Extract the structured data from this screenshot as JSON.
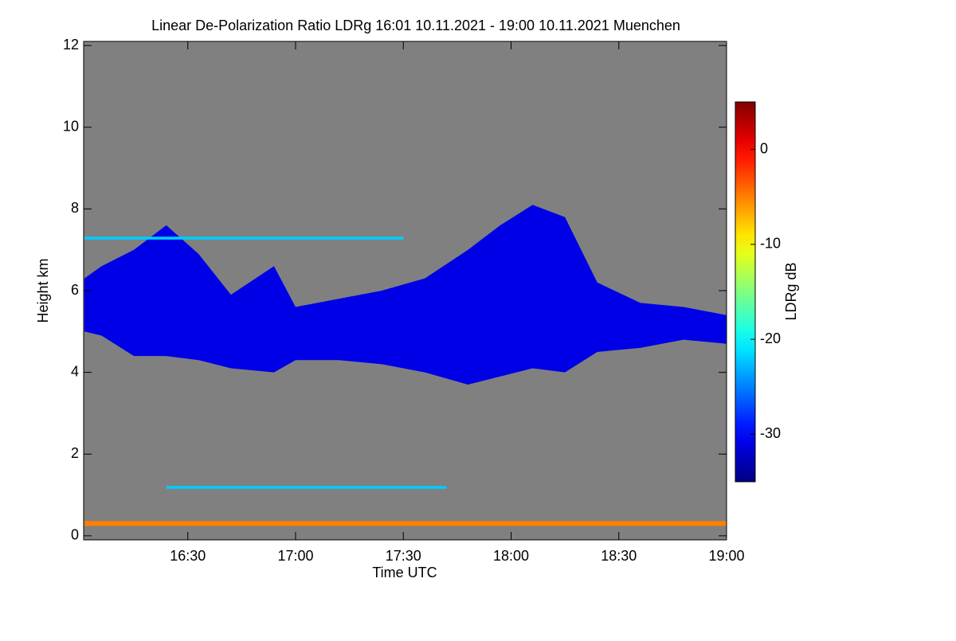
{
  "chart_data": {
    "type": "curtain",
    "title": "Linear De-Polarization Ratio LDRg   16:01 10.11.2021 - 19:00 10.11.2021 Muenchen",
    "xlabel": "Time UTC",
    "ylabel": "Height km",
    "colorbar_label": "LDRg dB",
    "colormap": "jet",
    "background": "#808080",
    "xlim": [
      16.0167,
      19.0
    ],
    "xticks": [
      {
        "value": 16.5,
        "label": "16:30"
      },
      {
        "value": 17.0,
        "label": "17:00"
      },
      {
        "value": 17.5,
        "label": "17:30"
      },
      {
        "value": 18.0,
        "label": "18:00"
      },
      {
        "value": 18.5,
        "label": "18:30"
      },
      {
        "value": 19.0,
        "label": "19:00"
      }
    ],
    "ylim": [
      -0.1,
      12.1
    ],
    "yticks": [
      0,
      2,
      4,
      6,
      8,
      10,
      12
    ],
    "clim": [
      -35,
      5
    ],
    "cticks": [
      0,
      -10,
      -20,
      -30
    ],
    "layers": [
      {
        "ldr": -31,
        "x": [
          16.02,
          16.1,
          16.25,
          16.4,
          16.55,
          16.7,
          16.9,
          17.0,
          17.2,
          17.4,
          17.6,
          17.8,
          17.95,
          18.1,
          18.25,
          18.4,
          18.6,
          18.8,
          19.0
        ],
        "base": [
          5.0,
          4.9,
          4.4,
          4.4,
          4.3,
          4.1,
          4.0,
          4.3,
          4.3,
          4.2,
          4.0,
          3.7,
          3.9,
          4.1,
          4.0,
          4.5,
          4.6,
          4.8,
          4.7
        ],
        "top": [
          6.3,
          6.6,
          7.0,
          7.6,
          6.9,
          5.9,
          6.6,
          5.6,
          5.8,
          6.0,
          6.3,
          7.0,
          7.6,
          8.1,
          7.8,
          6.2,
          5.7,
          5.6,
          5.4
        ]
      },
      {
        "ldr": -22,
        "x": [
          16.02,
          17.5
        ],
        "base": [
          7.25,
          7.25
        ],
        "top": [
          7.32,
          7.32
        ]
      },
      {
        "ldr": -22,
        "x": [
          16.4,
          17.7
        ],
        "base": [
          1.15,
          1.15
        ],
        "top": [
          1.22,
          1.22
        ]
      },
      {
        "ldr": -5,
        "x": [
          16.02,
          19.0
        ],
        "base": [
          0.24,
          0.24
        ],
        "top": [
          0.36,
          0.36
        ]
      }
    ]
  }
}
